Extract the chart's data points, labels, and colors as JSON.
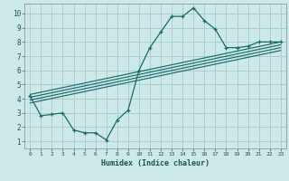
{
  "xlabel": "Humidex (Indice chaleur)",
  "bg_color": "#cce8e8",
  "grid_color": "#aacece",
  "line_color": "#1a6b6b",
  "xlim": [
    -0.5,
    23.5
  ],
  "ylim": [
    0.5,
    10.7
  ],
  "xticks": [
    0,
    1,
    2,
    3,
    4,
    5,
    6,
    7,
    8,
    9,
    10,
    11,
    12,
    13,
    14,
    15,
    16,
    17,
    18,
    19,
    20,
    21,
    22,
    23
  ],
  "yticks": [
    1,
    2,
    3,
    4,
    5,
    6,
    7,
    8,
    9,
    10
  ],
  "main_x": [
    0,
    1,
    2,
    3,
    4,
    5,
    6,
    7,
    8,
    9,
    10,
    11,
    12,
    13,
    14,
    15,
    16,
    17,
    18,
    19,
    20,
    21,
    22,
    23
  ],
  "main_y": [
    4.2,
    2.8,
    2.9,
    3.0,
    1.8,
    1.6,
    1.6,
    1.1,
    2.5,
    3.2,
    6.0,
    7.6,
    8.7,
    9.8,
    9.8,
    10.4,
    9.5,
    8.9,
    7.6,
    7.6,
    7.7,
    8.0,
    8.0,
    8.0
  ],
  "reg_lines": [
    [
      [
        0,
        23
      ],
      [
        4.3,
        8.0
      ]
    ],
    [
      [
        0,
        23
      ],
      [
        4.1,
        7.8
      ]
    ],
    [
      [
        0,
        23
      ],
      [
        3.9,
        7.6
      ]
    ],
    [
      [
        0,
        23
      ],
      [
        3.7,
        7.4
      ]
    ]
  ]
}
